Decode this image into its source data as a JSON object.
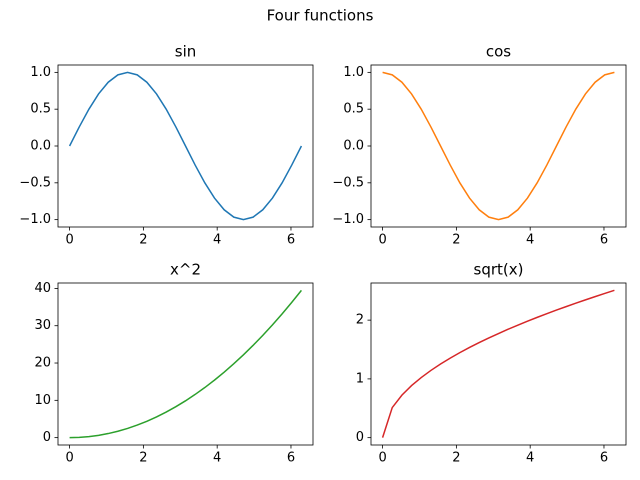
{
  "title": "Four functions",
  "chart_data": [
    {
      "type": "line",
      "title": "sin",
      "color": "#1f77b4",
      "x": [
        0,
        0.262,
        0.524,
        0.785,
        1.047,
        1.309,
        1.571,
        1.833,
        2.094,
        2.356,
        2.618,
        2.88,
        3.142,
        3.403,
        3.665,
        3.927,
        4.189,
        4.451,
        4.712,
        4.974,
        5.236,
        5.498,
        5.76,
        6.021,
        6.283
      ],
      "values": [
        0,
        0.259,
        0.5,
        0.707,
        0.866,
        0.966,
        1,
        0.966,
        0.866,
        0.707,
        0.5,
        0.259,
        0,
        -0.259,
        -0.5,
        -0.707,
        -0.866,
        -0.966,
        -1,
        -0.966,
        -0.866,
        -0.707,
        -0.5,
        -0.259,
        0
      ],
      "xlim": [
        -0.314,
        6.597
      ],
      "xticks": [
        0,
        2,
        4,
        6
      ],
      "ylim": [
        -1.1,
        1.1
      ],
      "yticks": [
        {
          "value": -1,
          "label": "−1.0"
        },
        {
          "value": -0.5,
          "label": "−0.5"
        },
        {
          "value": 0,
          "label": "0.0"
        },
        {
          "value": 0.5,
          "label": "0.5"
        },
        {
          "value": 1,
          "label": "1.0"
        }
      ]
    },
    {
      "type": "line",
      "title": "cos",
      "color": "#ff7f0e",
      "x": [
        0,
        0.262,
        0.524,
        0.785,
        1.047,
        1.309,
        1.571,
        1.833,
        2.094,
        2.356,
        2.618,
        2.88,
        3.142,
        3.403,
        3.665,
        3.927,
        4.189,
        4.451,
        4.712,
        4.974,
        5.236,
        5.498,
        5.76,
        6.021,
        6.283
      ],
      "values": [
        1,
        0.966,
        0.866,
        0.707,
        0.5,
        0.259,
        0,
        -0.259,
        -0.5,
        -0.707,
        -0.866,
        -0.966,
        -1,
        -0.966,
        -0.866,
        -0.707,
        -0.5,
        -0.259,
        0,
        0.259,
        0.5,
        0.707,
        0.866,
        0.966,
        1
      ],
      "xlim": [
        -0.314,
        6.597
      ],
      "xticks": [
        0,
        2,
        4,
        6
      ],
      "ylim": [
        -1.1,
        1.1
      ],
      "yticks": [
        {
          "value": -1,
          "label": "−1.0"
        },
        {
          "value": -0.5,
          "label": "−0.5"
        },
        {
          "value": 0,
          "label": "0.0"
        },
        {
          "value": 0.5,
          "label": "0.5"
        },
        {
          "value": 1,
          "label": "1.0"
        }
      ]
    },
    {
      "type": "line",
      "title": "x^2",
      "color": "#2ca02c",
      "x": [
        0,
        0.262,
        0.524,
        0.785,
        1.047,
        1.309,
        1.571,
        1.833,
        2.094,
        2.356,
        2.618,
        2.88,
        3.142,
        3.403,
        3.665,
        3.927,
        4.189,
        4.451,
        4.712,
        4.974,
        5.236,
        5.498,
        5.76,
        6.021,
        6.283
      ],
      "values": [
        0,
        0.069,
        0.274,
        0.617,
        1.097,
        1.713,
        2.467,
        3.358,
        4.386,
        5.551,
        6.854,
        8.293,
        9.87,
        11.58,
        13.43,
        15.42,
        17.55,
        19.81,
        22.21,
        24.74,
        27.42,
        30.23,
        33.17,
        36.26,
        39.48
      ],
      "xlim": [
        -0.314,
        6.597
      ],
      "xticks": [
        0,
        2,
        4,
        6
      ],
      "ylim": [
        -1.974,
        41.45
      ],
      "yticks": [
        0,
        10,
        20,
        30,
        40
      ]
    },
    {
      "type": "line",
      "title": "sqrt(x)",
      "color": "#d62728",
      "x": [
        0,
        0.262,
        0.524,
        0.785,
        1.047,
        1.309,
        1.571,
        1.833,
        2.094,
        2.356,
        2.618,
        2.88,
        3.142,
        3.403,
        3.665,
        3.927,
        4.189,
        4.451,
        4.712,
        4.974,
        5.236,
        5.498,
        5.76,
        6.021,
        6.283
      ],
      "values": [
        0,
        0.512,
        0.724,
        0.886,
        1.023,
        1.144,
        1.253,
        1.354,
        1.447,
        1.535,
        1.618,
        1.697,
        1.772,
        1.845,
        1.914,
        1.982,
        2.047,
        2.11,
        2.171,
        2.23,
        2.288,
        2.345,
        2.4,
        2.454,
        2.507
      ],
      "xlim": [
        -0.314,
        6.597
      ],
      "xticks": [
        0,
        2,
        4,
        6
      ],
      "ylim": [
        -0.125,
        2.632
      ],
      "yticks": [
        0,
        1,
        2
      ]
    }
  ]
}
